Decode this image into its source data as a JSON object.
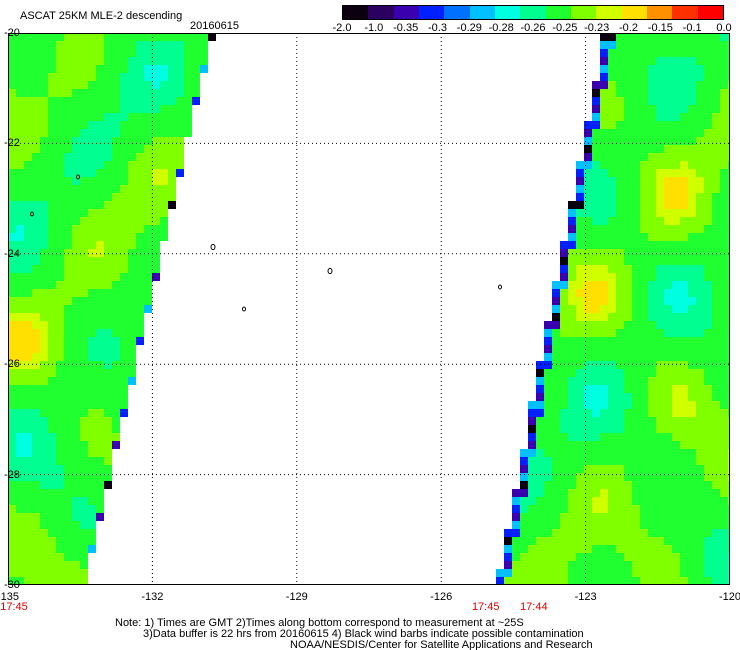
{
  "header": {
    "title": "ASCAT 25KM MLE-2 descending",
    "date": "20160615"
  },
  "colorbar": {
    "labels": [
      "-2.0",
      "-1.0",
      "-0.35",
      "-0.3",
      "-0.29",
      "-0.28",
      "-0.26",
      "-0.25",
      "-0.23",
      "-0.2",
      "-0.15",
      "-0.1",
      "0.0"
    ],
    "colors": [
      "#0a0010",
      "#2a0060",
      "#3a00b0",
      "#0020ff",
      "#0070ff",
      "#00c0ff",
      "#00ffe0",
      "#00ff90",
      "#20ff30",
      "#80ff00",
      "#d0ff00",
      "#ffe000",
      "#ff9000",
      "#ff3000",
      "#ff0000"
    ]
  },
  "axes": {
    "x_ticks": [
      "-135",
      "-132",
      "-129",
      "-126",
      "-123",
      "-120"
    ],
    "y_ticks": [
      "-20",
      "-22",
      "-24",
      "-26",
      "-28",
      "-30"
    ],
    "xlim": [
      -135,
      -120
    ],
    "ylim": [
      -30,
      -20
    ]
  },
  "times": [
    {
      "label": "17:45",
      "lon": -135
    },
    {
      "label": "17:45",
      "lon": -125.2
    },
    {
      "label": "17:44",
      "lon": -124.2
    }
  ],
  "notes": {
    "line1": "Note: 1) Times are GMT 2)Times along bottom correspond to measurement at ~25S",
    "line2": "3)Data buffer is 22 hrs from 20160615 4) Black wind barbs indicate possible contamination",
    "line3": "NOAA/NESDIS/Center for Satellite Applications and Research"
  }
}
